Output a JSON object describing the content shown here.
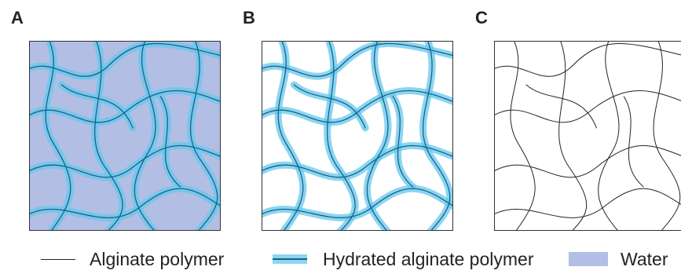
{
  "panels": [
    {
      "letter": "A",
      "variant": "water"
    },
    {
      "letter": "B",
      "variant": "hydrated"
    },
    {
      "letter": "C",
      "variant": "polymer"
    }
  ],
  "legend": {
    "alginate_polymer": "Alginate polymer",
    "hydrated_alginate_polymer": "Hydrated alginate polymer",
    "water": "Water"
  },
  "colors": {
    "water": "#b2bee3",
    "hydration_halo": "#63c8ee",
    "polymer_line": "#222222",
    "hydrated_core": "#1f5f86"
  }
}
